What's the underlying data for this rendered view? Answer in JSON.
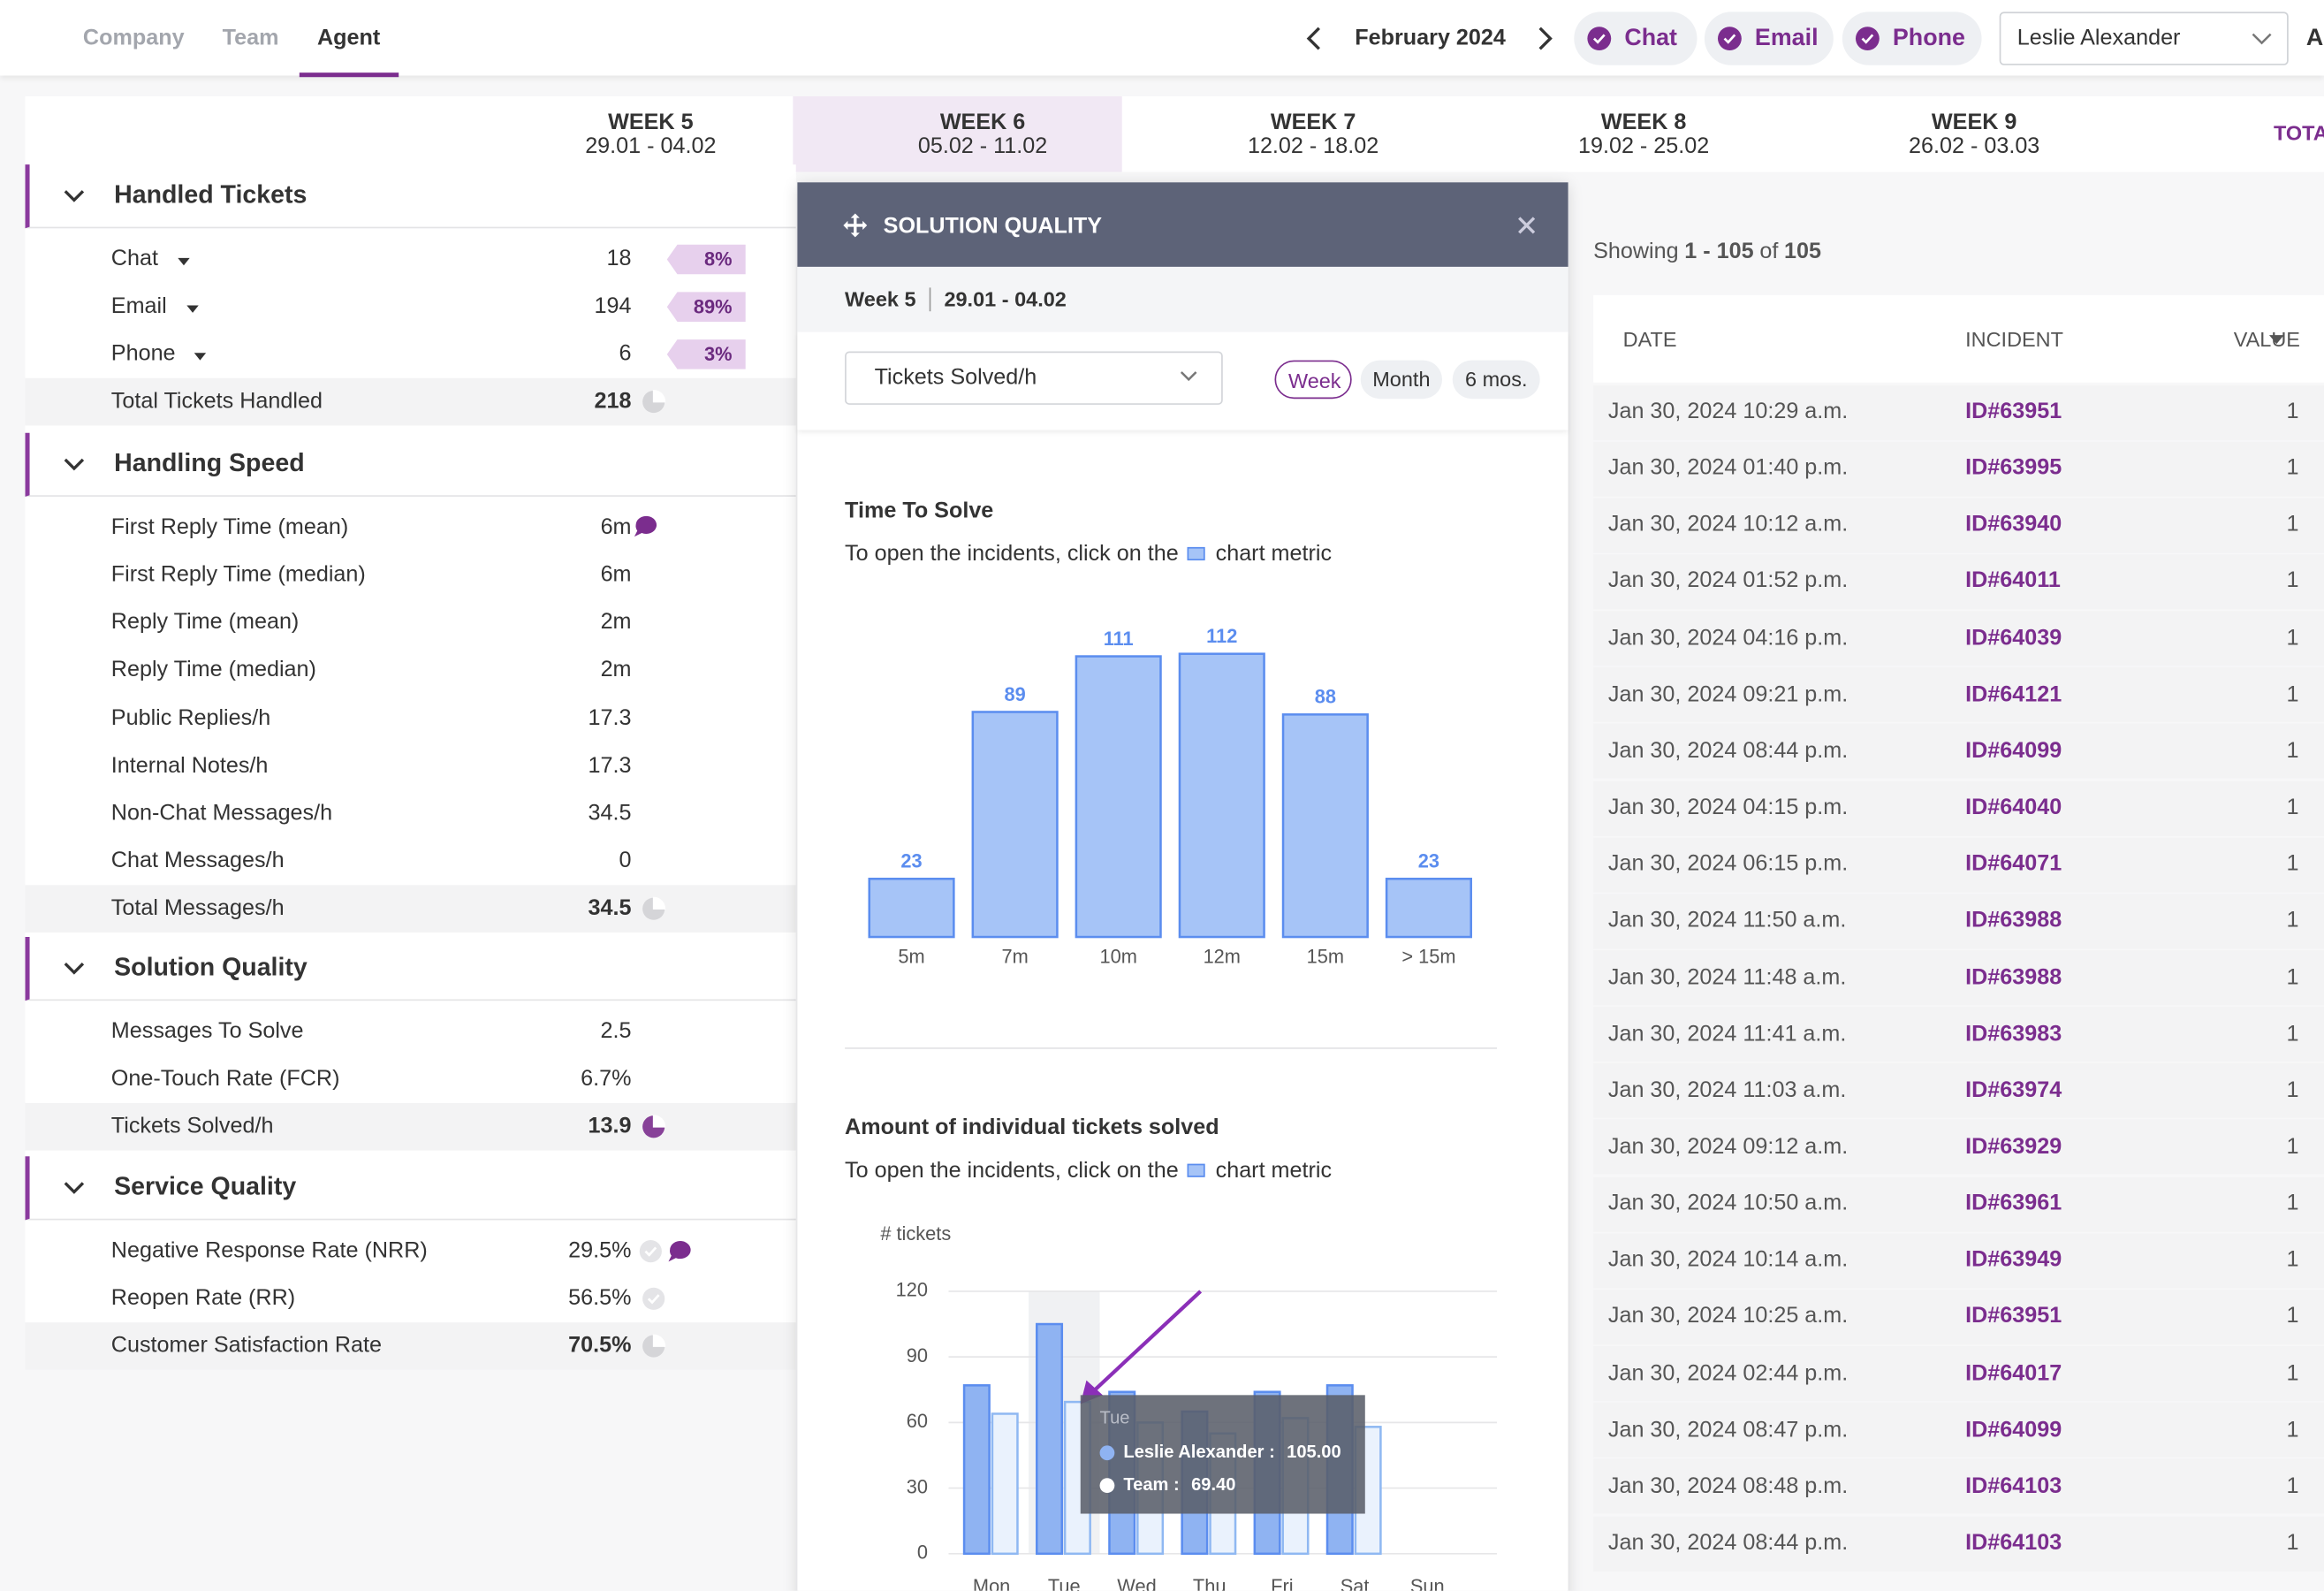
{
  "nav": {
    "tabs": [
      "Company",
      "Team",
      "Agent"
    ]
  },
  "header": {
    "month": "February 2024",
    "filters": [
      "Chat",
      "Email",
      "Phone"
    ],
    "user": "Leslie Alexander",
    "cut_text": "A"
  },
  "weeks": [
    {
      "label": "WEEK 5",
      "range": "29.01 - 04.02"
    },
    {
      "label": "WEEK 6",
      "range": "05.02 - 11.02"
    },
    {
      "label": "WEEK 7",
      "range": "12.02 - 18.02"
    },
    {
      "label": "WEEK 8",
      "range": "19.02 - 25.02"
    },
    {
      "label": "WEEK 9",
      "range": "26.02 - 03.03"
    }
  ],
  "total_column": "TOTA",
  "sections": [
    {
      "title": "Handled Tickets",
      "rows": [
        {
          "label": "Chat",
          "value": 18,
          "share": "8%"
        },
        {
          "label": "Email",
          "value": 194,
          "share": "89%"
        },
        {
          "label": "Phone",
          "value": 6,
          "share": "3%"
        }
      ],
      "total": {
        "label": "Total Tickets Handled",
        "value": 218
      }
    },
    {
      "title": "Handling Speed",
      "rows": [
        {
          "label": "First Reply Time (mean)",
          "value": "6m"
        },
        {
          "label": "First Reply Time (median)",
          "value": "6m"
        },
        {
          "label": "Reply Time (mean)",
          "value": "2m"
        },
        {
          "label": "Reply Time (median)",
          "value": "2m"
        },
        {
          "label": "Public Replies/h",
          "value": 17.3
        },
        {
          "label": "Internal Notes/h",
          "value": 17.3
        },
        {
          "label": "Non-Chat Messages/h",
          "value": 34.5
        },
        {
          "label": "Chat Messages/h",
          "value": 0
        }
      ],
      "total": {
        "label": "Total Messages/h",
        "value": 34.5
      }
    },
    {
      "title": "Solution Quality",
      "rows": [
        {
          "label": "Messages To Solve",
          "value": 2.5
        },
        {
          "label": "One-Touch Rate (FCR)",
          "value": "6.7%"
        }
      ],
      "total": {
        "label": "Tickets Solved/h",
        "value": 13.9
      }
    },
    {
      "title": "Service Quality",
      "rows": [
        {
          "label": "Negative Response Rate (NRR)",
          "value": "29.5%"
        },
        {
          "label": "Reopen Rate (RR)",
          "value": "56.5%"
        }
      ],
      "total": {
        "label": "Customer Satisfaction Rate",
        "value": "70.5%"
      }
    }
  ],
  "panel": {
    "title": "SOLUTION QUALITY",
    "week": "Week 5",
    "range": "29.01 - 04.02",
    "select": "Tickets Solved/h",
    "periods": [
      "Week",
      "Month",
      "6 mos."
    ]
  },
  "chart_data": [
    {
      "type": "bar",
      "title": "Time To Solve",
      "note": "To open the incidents, click on the",
      "note_end": "chart metric",
      "categories": [
        "5m",
        "7m",
        "10m",
        "12m",
        "15m",
        "> 15m"
      ],
      "values": [
        23,
        89,
        111,
        112,
        88,
        23
      ],
      "color": "#a6c4f7"
    },
    {
      "type": "grouped-bar",
      "title": "Amount of individual tickets solved",
      "note": "To open the incidents, click on the",
      "note_end": "chart metric",
      "y_label": "# tickets",
      "categories": [
        "Mon",
        "Tue",
        "Wed",
        "Thu",
        "Fri",
        "Sat",
        "Sun"
      ],
      "series": [
        {
          "color": "#8fb3f2",
          "values": [
            77,
            105,
            74,
            65,
            74,
            77,
            null
          ]
        },
        {
          "color": "#eaf2fd",
          "values": [
            64,
            69.4,
            60,
            55,
            62,
            58,
            null
          ]
        }
      ],
      "ylim": [
        0,
        120
      ],
      "yticks": [
        0,
        30,
        60,
        90,
        120
      ],
      "grid": true,
      "tooltip": {
        "title": "Tue",
        "lines": [
          {
            "label": "Leslie Alexander :",
            "value": "105.00"
          },
          {
            "label": "Team :",
            "value": "69.40"
          }
        ]
      }
    }
  ],
  "incidents": {
    "showing": {
      "prefix": "Showing",
      "range": "1 - 105",
      "of": "of",
      "total": 105
    },
    "columns": [
      "DATE",
      "INCIDENT",
      "VALUE"
    ],
    "rows": [
      [
        "Jan 30, 2024 10:29 a.m.",
        "ID#63951",
        1
      ],
      [
        "Jan 30, 2024 01:40 p.m.",
        "ID#63995",
        1
      ],
      [
        "Jan 30, 2024 10:12 a.m.",
        "ID#63940",
        1
      ],
      [
        "Jan 30, 2024 01:52 p.m.",
        "ID#64011",
        1
      ],
      [
        "Jan 30, 2024 04:16 p.m.",
        "ID#64039",
        1
      ],
      [
        "Jan 30, 2024 09:21 p.m.",
        "ID#64121",
        1
      ],
      [
        "Jan 30, 2024 08:44 p.m.",
        "ID#64099",
        1
      ],
      [
        "Jan 30, 2024 04:15 p.m.",
        "ID#64040",
        1
      ],
      [
        "Jan 30, 2024 06:15 p.m.",
        "ID#64071",
        1
      ],
      [
        "Jan 30, 2024 11:50 a.m.",
        "ID#63988",
        1
      ],
      [
        "Jan 30, 2024 11:48 a.m.",
        "ID#63988",
        1
      ],
      [
        "Jan 30, 2024 11:41 a.m.",
        "ID#63983",
        1
      ],
      [
        "Jan 30, 2024 11:03 a.m.",
        "ID#63974",
        1
      ],
      [
        "Jan 30, 2024 09:12 a.m.",
        "ID#63929",
        1
      ],
      [
        "Jan 30, 2024 10:50 a.m.",
        "ID#63961",
        1
      ],
      [
        "Jan 30, 2024 10:14 a.m.",
        "ID#63949",
        1
      ],
      [
        "Jan 30, 2024 10:25 a.m.",
        "ID#63951",
        1
      ],
      [
        "Jan 30, 2024 02:44 p.m.",
        "ID#64017",
        1
      ],
      [
        "Jan 30, 2024 08:47 p.m.",
        "ID#64099",
        1
      ],
      [
        "Jan 30, 2024 08:48 p.m.",
        "ID#64103",
        1
      ],
      [
        "Jan 30, 2024 08:44 p.m.",
        "ID#64103",
        1
      ]
    ]
  }
}
